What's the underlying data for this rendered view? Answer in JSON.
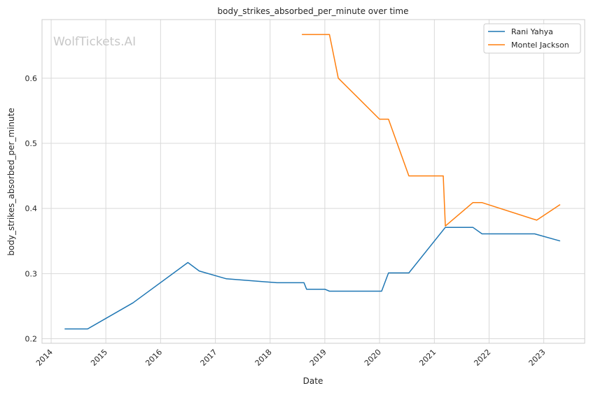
{
  "watermark": "WolfTickets.AI",
  "chart_data": {
    "type": "line",
    "title": "body_strikes_absorbed_per_minute over time",
    "xlabel": "Date",
    "ylabel": "body_strikes_absorbed_per_minute",
    "xlim": [
      "2013-11-01",
      "2023-10-01"
    ],
    "ylim": [
      0.193,
      0.69
    ],
    "x_ticks": [
      "2014-01-01",
      "2015-01-01",
      "2016-01-01",
      "2017-01-01",
      "2018-01-01",
      "2019-01-01",
      "2020-01-01",
      "2021-01-01",
      "2022-01-01",
      "2023-01-01"
    ],
    "x_tick_labels": [
      "2014",
      "2015",
      "2016",
      "2017",
      "2018",
      "2019",
      "2020",
      "2021",
      "2022",
      "2023"
    ],
    "y_ticks": [
      0.2,
      0.3,
      0.4,
      0.5,
      0.6
    ],
    "y_tick_labels": [
      "0.2",
      "0.3",
      "0.4",
      "0.5",
      "0.6"
    ],
    "grid": true,
    "legend_position": "top-right",
    "series": [
      {
        "name": "Rani Yahya",
        "color": "#1f77b4",
        "points": [
          [
            "2014-04-01",
            0.215
          ],
          [
            "2014-09-01",
            0.215
          ],
          [
            "2015-07-01",
            0.255
          ],
          [
            "2016-07-01",
            0.317
          ],
          [
            "2016-09-15",
            0.304
          ],
          [
            "2017-03-15",
            0.292
          ],
          [
            "2018-02-15",
            0.286
          ],
          [
            "2018-08-15",
            0.286
          ],
          [
            "2018-09-01",
            0.276
          ],
          [
            "2019-01-01",
            0.276
          ],
          [
            "2019-02-01",
            0.273
          ],
          [
            "2020-01-15",
            0.273
          ],
          [
            "2020-03-01",
            0.301
          ],
          [
            "2020-07-15",
            0.301
          ],
          [
            "2021-03-15",
            0.371
          ],
          [
            "2021-09-15",
            0.371
          ],
          [
            "2021-11-15",
            0.361
          ],
          [
            "2022-11-01",
            0.361
          ],
          [
            "2023-04-20",
            0.35
          ]
        ]
      },
      {
        "name": "Montel Jackson",
        "color": "#ff7f0e",
        "points": [
          [
            "2018-08-01",
            0.667
          ],
          [
            "2019-02-01",
            0.667
          ],
          [
            "2019-04-01",
            0.6
          ],
          [
            "2020-01-01",
            0.537
          ],
          [
            "2020-03-01",
            0.537
          ],
          [
            "2020-07-15",
            0.45
          ],
          [
            "2021-03-01",
            0.45
          ],
          [
            "2021-03-15",
            0.373
          ],
          [
            "2021-09-15",
            0.409
          ],
          [
            "2021-11-15",
            0.409
          ],
          [
            "2022-11-15",
            0.382
          ],
          [
            "2023-04-20",
            0.406
          ]
        ]
      }
    ]
  }
}
